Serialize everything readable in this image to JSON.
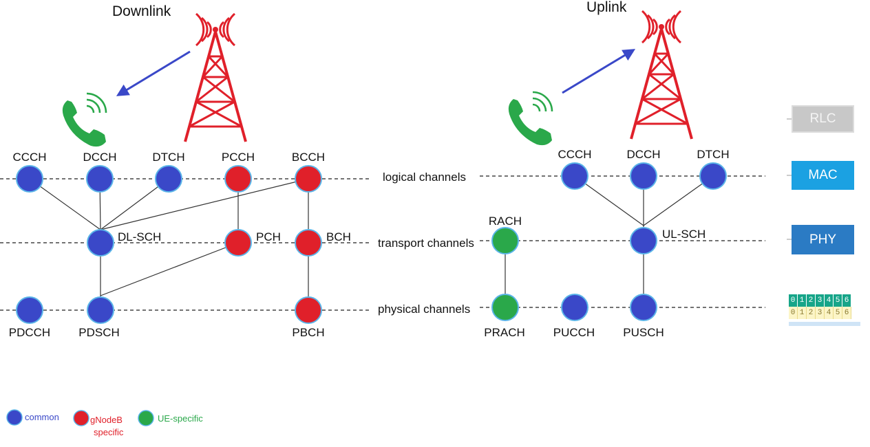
{
  "downlink": {
    "title": "Downlink",
    "logical_nodes": [
      "CCCH",
      "DCCH",
      "DTCH",
      "PCCH",
      "BCCH"
    ],
    "transport_nodes": [
      "DL-SCH",
      "PCH",
      "BCH"
    ],
    "physical_nodes": [
      "PDCCH",
      "PDSCH",
      "PBCH"
    ]
  },
  "uplink": {
    "title": "Uplink",
    "logical_nodes": [
      "CCCH",
      "DCCH",
      "DTCH"
    ],
    "transport_nodes": [
      "RACH",
      "UL-SCH"
    ],
    "physical_nodes": [
      "PRACH",
      "PUCCH",
      "PUSCH"
    ]
  },
  "rows": {
    "logical": "logical channels",
    "transport": "transport channels",
    "physical": "physical channels"
  },
  "layers": {
    "rlc": "RLC",
    "mac": "MAC",
    "phy": "PHY"
  },
  "slot_numbers": [
    "0",
    "1",
    "2",
    "3",
    "4",
    "5",
    "6"
  ],
  "legend": {
    "common": "common",
    "gnodeb_line1": "gNodeB",
    "gnodeb_line2": "specific",
    "ue": "UE-specific"
  },
  "colors": {
    "common": "#3a48c8",
    "gnodeb": "#e0202a",
    "ue": "#2aa84a",
    "arrow": "#3a48c8",
    "tower": "#e0202a",
    "phone": "#2aa84a",
    "node_border": "#5ab4e8"
  },
  "icons": [
    "cell-tower-icon",
    "phone-icon",
    "arrow-icon"
  ]
}
